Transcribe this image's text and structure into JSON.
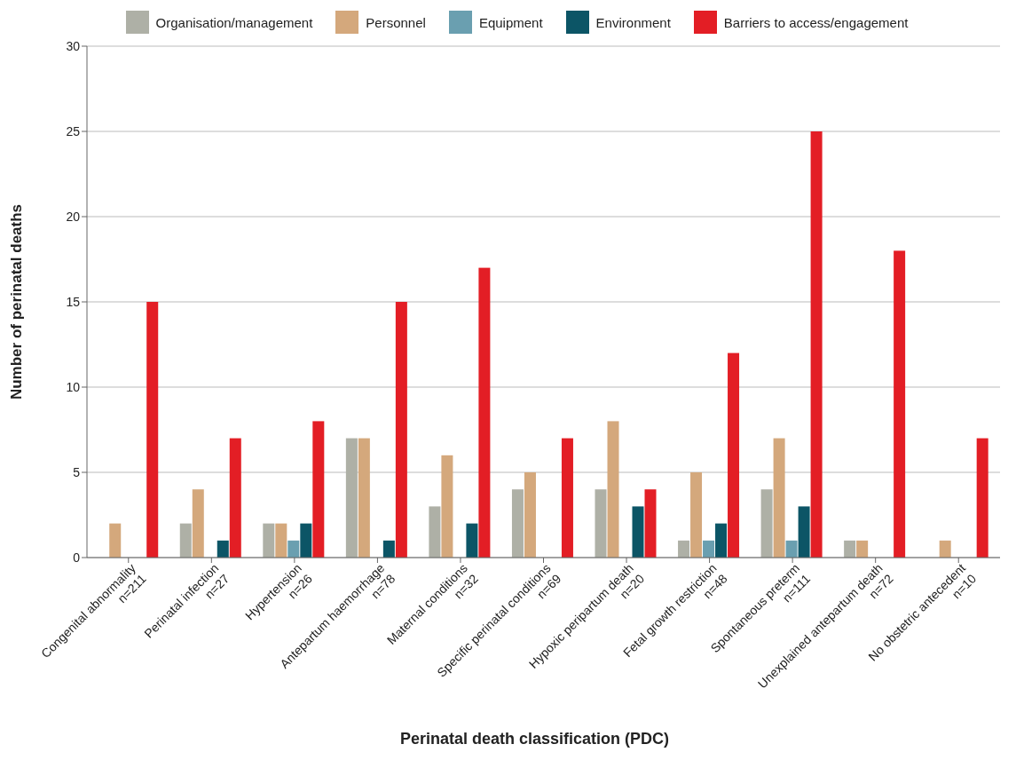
{
  "chart_data": {
    "type": "bar",
    "xlabel": "Perinatal death classification (PDC)",
    "ylabel": "Number of perinatal deaths",
    "categories": [
      "Congenital abnormality\nn=211",
      "Perinatal infection\nn=27",
      "Hypertension\nn=26",
      "Antepartum haemorrhage\nn=78",
      "Maternal conditions\nn=32",
      "Specific perinatal conditions\nn=69",
      "Hypoxic peripartum death\nn=20",
      "Fetal growth restriction\nn=48",
      "Spontaneous preterm\nn=111",
      "Unexplained antepartum death\nn=72",
      "No obstetric antecedent\nn=10"
    ],
    "series": [
      {
        "name": "Organisation/management",
        "color": "#aeb0a6",
        "values": [
          0,
          2,
          2,
          7,
          3,
          4,
          4,
          1,
          4,
          1,
          0
        ]
      },
      {
        "name": "Personnel",
        "color": "#d4a87c",
        "values": [
          2,
          4,
          2,
          7,
          6,
          5,
          8,
          5,
          7,
          1,
          1
        ]
      },
      {
        "name": "Equipment",
        "color": "#6a9fb0",
        "values": [
          0,
          0,
          1,
          0,
          0,
          0,
          0,
          1,
          1,
          0,
          0
        ]
      },
      {
        "name": "Environment",
        "color": "#0c5566",
        "values": [
          0,
          1,
          2,
          1,
          2,
          0,
          3,
          2,
          3,
          0,
          0
        ]
      },
      {
        "name": "Barriers to access/engagement",
        "color": "#e31e25",
        "values": [
          15,
          7,
          8,
          15,
          17,
          7,
          4,
          12,
          25,
          18,
          7
        ]
      }
    ],
    "ylim": [
      0,
      30
    ],
    "yticks": [
      0,
      5,
      10,
      15,
      20,
      25,
      30
    ],
    "grid": "y",
    "legend": "top"
  }
}
